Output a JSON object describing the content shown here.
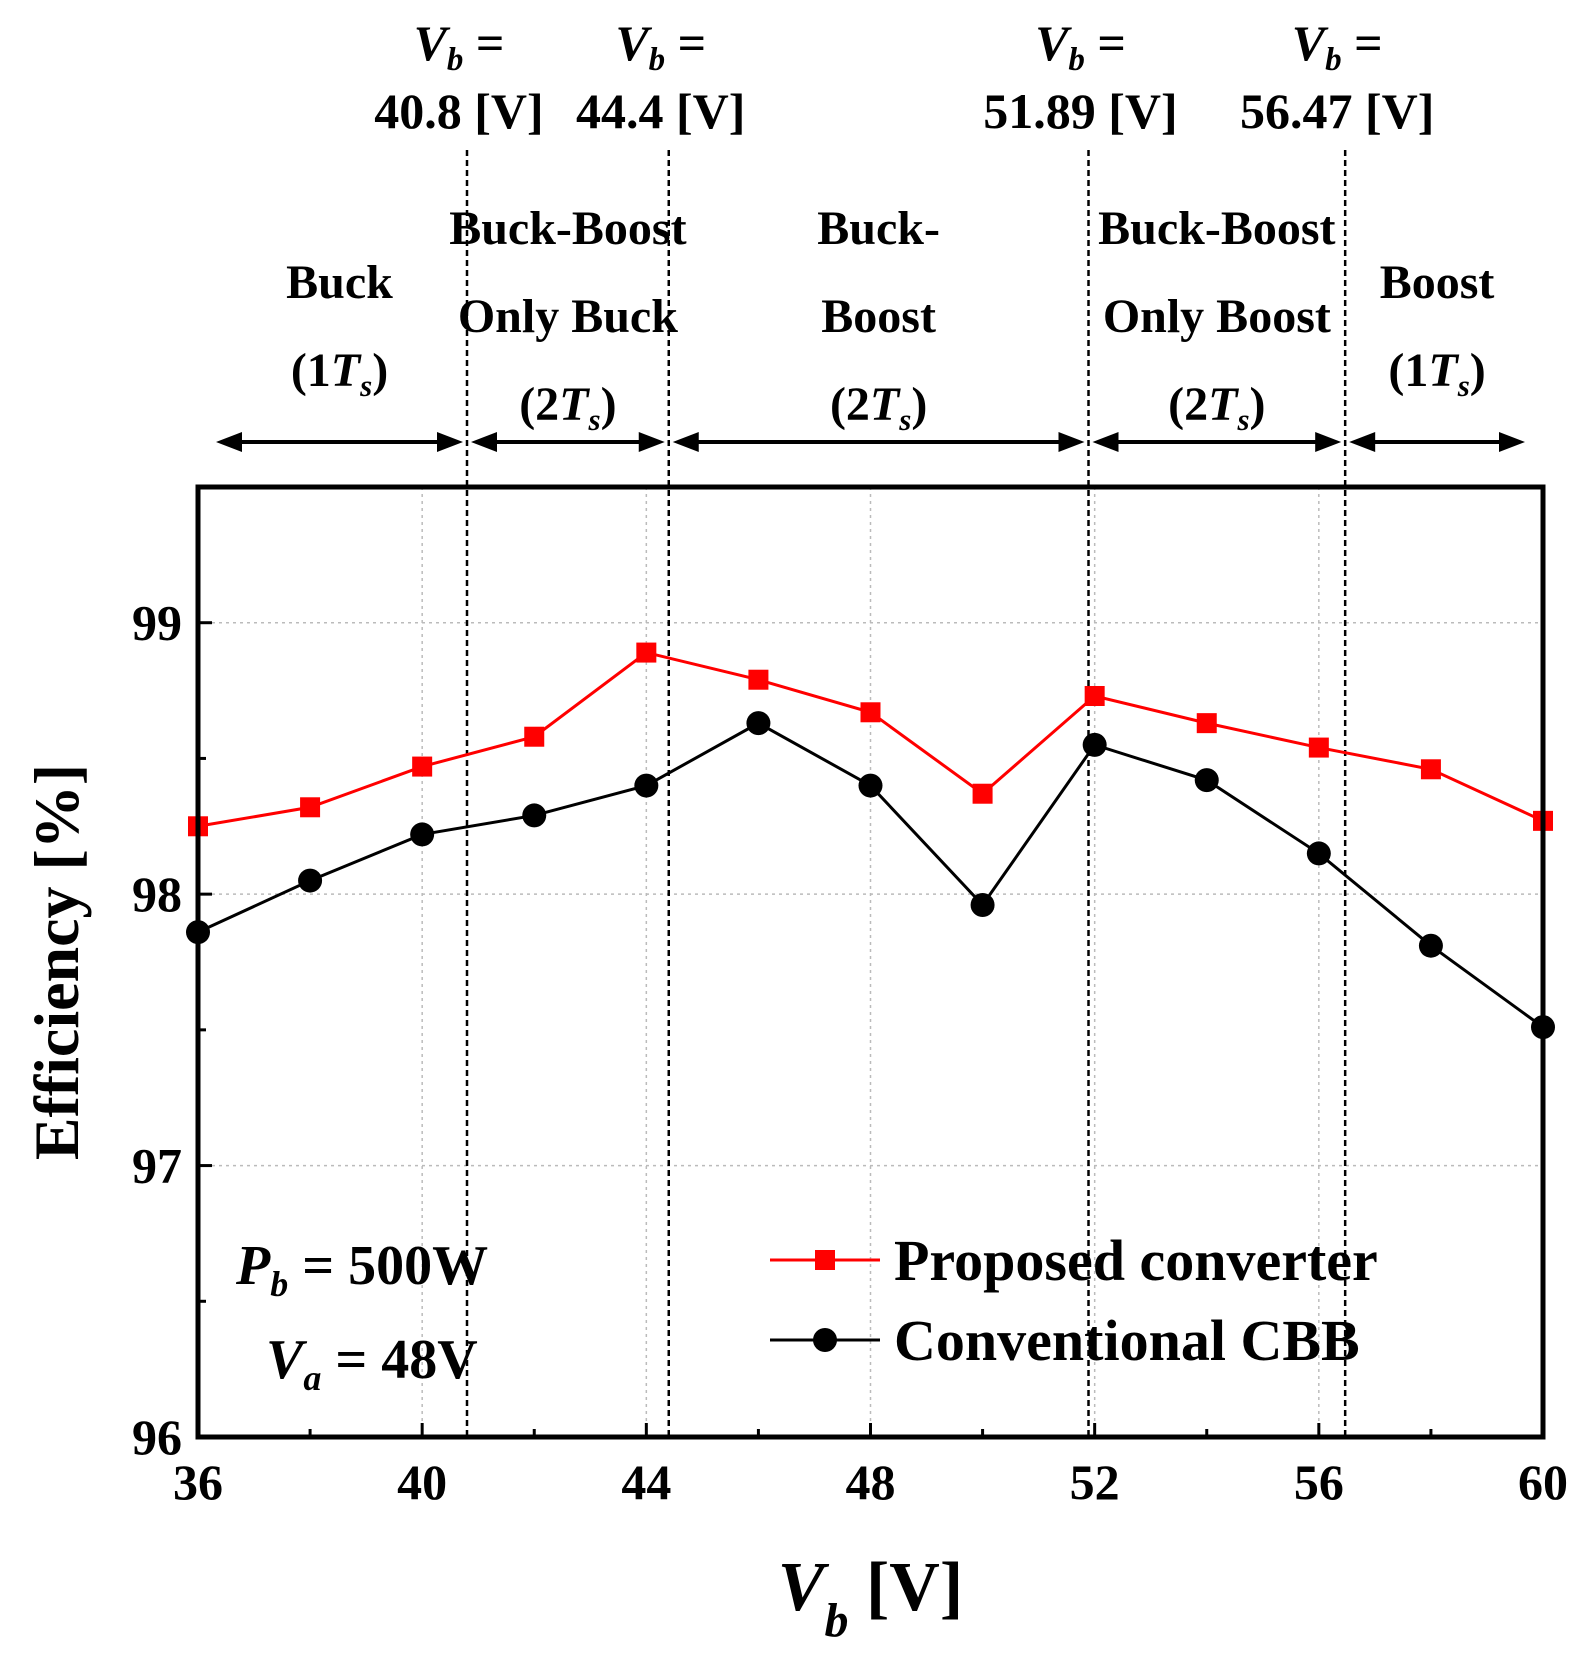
{
  "chart_data": {
    "type": "line",
    "xlabel": {
      "symbol": "V",
      "sub": "b",
      "unit": "[V]"
    },
    "ylabel": "Efficiency [%]",
    "xlim": [
      36,
      60
    ],
    "ylim": [
      96,
      99.5
    ],
    "xticks": [
      36,
      40,
      44,
      48,
      52,
      56,
      60
    ],
    "yticks": [
      96,
      97,
      98,
      99
    ],
    "grid": true,
    "x": [
      36,
      38,
      40,
      42,
      44,
      46,
      48,
      50,
      52,
      54,
      56,
      58,
      60
    ],
    "series": [
      {
        "name": "Proposed converter",
        "color": "#ff0000",
        "marker": "square",
        "values": [
          98.25,
          98.32,
          98.47,
          98.58,
          98.89,
          98.79,
          98.67,
          98.37,
          98.73,
          98.63,
          98.54,
          98.46,
          98.27
        ]
      },
      {
        "name": "Conventional CBB",
        "color": "#000000",
        "marker": "circle",
        "values": [
          97.86,
          98.05,
          98.22,
          98.29,
          98.4,
          98.63,
          98.4,
          97.96,
          98.55,
          98.42,
          98.15,
          97.81,
          97.51
        ]
      }
    ],
    "boundaries": [
      {
        "v": 40.8,
        "label_top": "V_b =",
        "label_value": "40.8 [V]"
      },
      {
        "v": 44.4,
        "label_top": "V_b =",
        "label_value": "44.4 [V]"
      },
      {
        "v": 51.89,
        "label_top": "V_b =",
        "label_value": "51.89 [V]"
      },
      {
        "v": 56.47,
        "label_top": "V_b =",
        "label_value": "56.47 [V]"
      }
    ],
    "regions": [
      {
        "from": 36,
        "to": 40.8,
        "lines": [
          "Buck",
          "(1T_s)"
        ]
      },
      {
        "from": 40.8,
        "to": 44.4,
        "lines": [
          "Buck-Boost",
          "Only Buck",
          "(2T_s)"
        ]
      },
      {
        "from": 44.4,
        "to": 51.89,
        "lines": [
          "Buck-",
          "Boost",
          "(2T_s)"
        ]
      },
      {
        "from": 51.89,
        "to": 56.47,
        "lines": [
          "Buck-Boost",
          "Only Boost",
          "(2T_s)"
        ]
      },
      {
        "from": 56.47,
        "to": 60,
        "lines": [
          "Boost",
          "(1T_s)"
        ]
      }
    ],
    "annotations": [
      {
        "symbol": "P",
        "sub": "b",
        "text": " = 500W"
      },
      {
        "symbol": "V",
        "sub": "a",
        "text": " = 48V"
      }
    ]
  }
}
